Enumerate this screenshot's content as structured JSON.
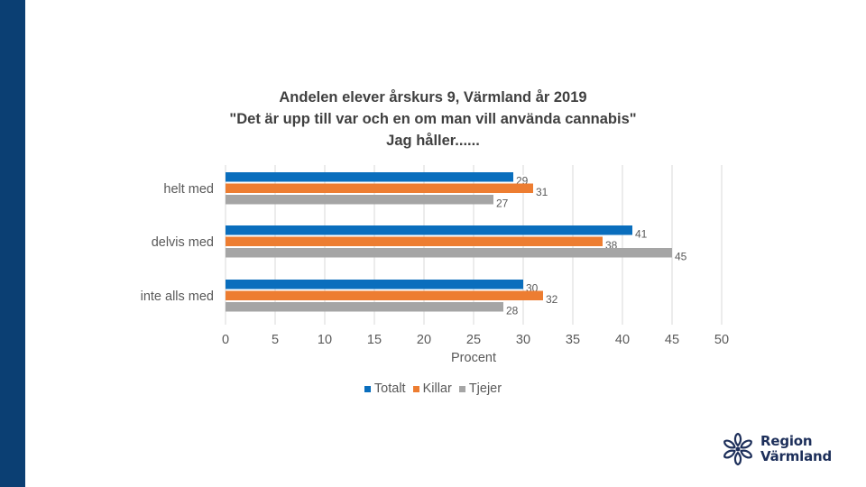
{
  "title_lines": [
    "Andelen elever årskurs 9, Värmland år 2019",
    "\"Det är upp till var och en om man vill använda cannabis\"",
    "Jag håller......"
  ],
  "colors": {
    "sidebar": "#0b3f73",
    "totalt": "#0a6ebd",
    "killar": "#ed7d31",
    "tjejer": "#a5a5a5",
    "gridline": "#d9d9d9",
    "text": "#595959"
  },
  "chart_data": {
    "type": "bar",
    "orientation": "horizontal",
    "categories": [
      "helt med",
      "delvis med",
      "inte alls med"
    ],
    "series": [
      {
        "name": "Totalt",
        "values": [
          29,
          41,
          30
        ]
      },
      {
        "name": "Killar",
        "values": [
          31,
          38,
          32
        ]
      },
      {
        "name": "Tjejer",
        "values": [
          27,
          45,
          28
        ]
      }
    ],
    "xlim": [
      0,
      50
    ],
    "xticks": [
      0,
      5,
      10,
      15,
      20,
      25,
      30,
      35,
      40,
      45,
      50
    ],
    "xlabel": "Procent",
    "ylabel": "",
    "grid": "vertical",
    "legend_position": "bottom"
  },
  "legend": [
    "Totalt",
    "Killar",
    "Tjejer"
  ],
  "logo": {
    "line1": "Region",
    "line2": "Värmland"
  }
}
